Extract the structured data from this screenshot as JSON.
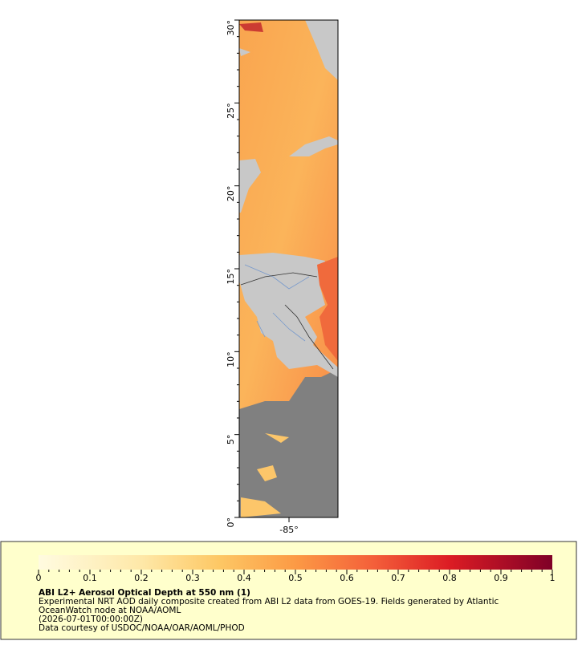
{
  "map": {
    "lat_ticks": [
      {
        "value": 30,
        "label": "30°"
      },
      {
        "value": 25,
        "label": "25°"
      },
      {
        "value": 20,
        "label": "20°"
      },
      {
        "value": 15,
        "label": "15°"
      },
      {
        "value": 10,
        "label": "10°"
      },
      {
        "value": 5,
        "label": "5°"
      },
      {
        "value": 0,
        "label": "0°"
      }
    ],
    "lon_ticks": [
      {
        "value": -85,
        "label": "-85°"
      }
    ],
    "lat_range": [
      0,
      30
    ],
    "lon_range": [
      -88,
      -82.05
    ]
  },
  "colorbar": {
    "range": [
      0,
      1
    ],
    "ticks": [
      0,
      0.1,
      0.2,
      0.3,
      0.4,
      0.5,
      0.6,
      0.7,
      0.8,
      0.9,
      1
    ]
  },
  "legend": {
    "title": "ABI L2+ Aerosol Optical Depth at 550 nm (1)",
    "lines": [
      "Experimental NRT AOD daily composite created from ABI L2 data from GOES-19. Fields generated by Atlantic",
      "OceanWatch node at NOAA/AOML",
      "(2026-07-01T00:00:00Z)",
      "Data courtesy of USDOC/NOAA/OAR/AOML/PHOD"
    ]
  }
}
